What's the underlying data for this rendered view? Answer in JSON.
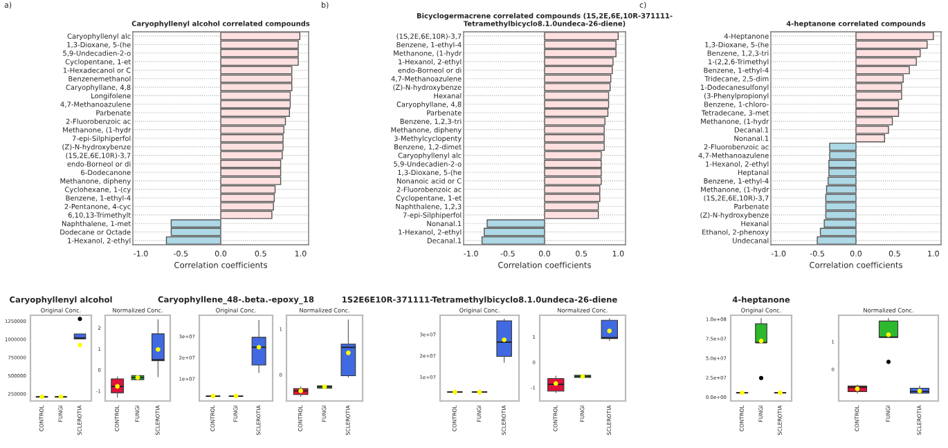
{
  "chart_data": [
    {
      "type": "bar",
      "orientation": "horizontal",
      "title": "Caryophyllenyl alcohol correlated compounds",
      "xlabel": "Correlation coefficients",
      "annotations": [
        "a)"
      ],
      "grid": "y",
      "xlim": [
        -1.1,
        1.1
      ],
      "xticks": [
        {
          "value": -1,
          "label": "-1.0"
        },
        {
          "value": -0.5,
          "label": "-0.5"
        },
        {
          "value": 0,
          "label": "0.0"
        },
        {
          "value": 0.5,
          "label": "0.5"
        },
        {
          "value": 1,
          "label": "1.0"
        }
      ],
      "categories": [
        "Caryophyllenyl alc",
        "1,3-Dioxane, 5-(he",
        "5,9-Undecadien-2-o",
        "Cyclopentane, 1-et",
        "1-Hexadecanol or C",
        "Benzenemethanol",
        "Caryophyllane, 4,8",
        "Longifolene",
        "4,7-Methanoazulene",
        "Parbenate",
        "2-Fluorobenzoic ac",
        "Methanone, (1-hydr",
        "7-epi-Silphiperfol",
        "(Z)-N-hydroxybenze",
        "(1S,2E,6E,10R)-3,7",
        "endo-Borneol or di",
        "6-Dodecanone",
        "Methanone, dipheny",
        "Cyclohexane, 1-(cy",
        "Benzene, 1-ethyl-4",
        "2-Pentanone, 4-cyc",
        "6,10,13-Trimethylt",
        "Naphthalene, 1-met",
        "Dodecane or Octade",
        "1-Hexanol, 2-ethyl"
      ],
      "values": [
        0.99,
        0.97,
        0.97,
        0.97,
        0.89,
        0.89,
        0.89,
        0.87,
        0.87,
        0.86,
        0.81,
        0.79,
        0.78,
        0.78,
        0.77,
        0.75,
        0.75,
        0.75,
        0.68,
        0.67,
        0.66,
        0.64,
        -0.62,
        -0.62,
        -0.68
      ],
      "colors": [
        "#ffe0e0",
        "#ffe0e0",
        "#ffe0e0",
        "#ffe0e0",
        "#ffe0e0",
        "#ffe0e0",
        "#ffe0e0",
        "#ffe0e0",
        "#ffe0e0",
        "#ffe0e0",
        "#ffe0e0",
        "#ffe0e0",
        "#ffe0e0",
        "#ffe0e0",
        "#ffe0e0",
        "#ffe0e0",
        "#ffe0e0",
        "#ffe0e0",
        "#ffe0e0",
        "#ffe0e0",
        "#ffe0e0",
        "#ffe0e0",
        "#add8e6",
        "#add8e6",
        "#add8e6"
      ]
    },
    {
      "type": "bar",
      "orientation": "horizontal",
      "title": "Bicyclogermacrene correlated compounds (1S,2E,6E,10R-371111-\nTetramethylbicyclo8.1.0undeca-26-diene)",
      "xlabel": "Correlation coefficients",
      "annotations": [
        "b)"
      ],
      "grid": "y",
      "xlim": [
        -1.1,
        1.1
      ],
      "xticks": [
        {
          "value": -1,
          "label": "-1.0"
        },
        {
          "value": -0.5,
          "label": "-0.5"
        },
        {
          "value": 0,
          "label": "0.0"
        },
        {
          "value": 0.5,
          "label": "0.5"
        },
        {
          "value": 1,
          "label": "1.0"
        }
      ],
      "categories": [
        "(1S,2E,6E,10R)-3,7",
        "Benzene, 1-ethyl-4",
        "Methanone, (1-hydr",
        "1-Hexanol, 2-ethyl",
        "endo-Borneol or di",
        "4,7-Methanoazulene",
        "(Z)-N-hydroxybenze",
        "Hexanal",
        "Caryophyllane, 4,8",
        "Parbenate",
        "Benzene, 1,2,3-tri",
        "Methanone, dipheny",
        "3-Methylcyclopenty",
        "Benzene, 1,2-dimet",
        "Caryophyllenyl alc",
        "5,9-Undecadien-2-o",
        "1,3-Dioxane, 5-(he",
        "Nonanoic acid or C",
        "2-Fluorobenzoic ac",
        "Cyclopentane, 1-et",
        "Naphthalene, 1,2,3",
        "7-epi-Silphiperfol",
        "Nonanal.1",
        "1-Hexanol, 2-ethyl",
        "Decanal.1"
      ],
      "values": [
        1.0,
        0.97,
        0.97,
        0.93,
        0.92,
        0.9,
        0.89,
        0.87,
        0.87,
        0.86,
        0.82,
        0.81,
        0.81,
        0.81,
        0.77,
        0.77,
        0.77,
        0.77,
        0.75,
        0.75,
        0.73,
        0.73,
        -0.78,
        -0.82,
        -0.85
      ],
      "colors": [
        "#ffe0e0",
        "#ffe0e0",
        "#ffe0e0",
        "#ffe0e0",
        "#ffe0e0",
        "#ffe0e0",
        "#ffe0e0",
        "#ffe0e0",
        "#ffe0e0",
        "#ffe0e0",
        "#ffe0e0",
        "#ffe0e0",
        "#ffe0e0",
        "#ffe0e0",
        "#ffe0e0",
        "#ffe0e0",
        "#ffe0e0",
        "#ffe0e0",
        "#ffe0e0",
        "#ffe0e0",
        "#ffe0e0",
        "#ffe0e0",
        "#add8e6",
        "#add8e6",
        "#add8e6"
      ]
    },
    {
      "type": "bar",
      "orientation": "horizontal",
      "title": "4-heptanone correlated compounds",
      "xlabel": "Correlation coefficients",
      "annotations": [
        "c)"
      ],
      "grid": "y",
      "xlim": [
        -1.1,
        1.1
      ],
      "xticks": [
        {
          "value": -1,
          "label": "-1.0"
        },
        {
          "value": -0.5,
          "label": "-0.5"
        },
        {
          "value": 0,
          "label": "0.0"
        },
        {
          "value": 0.5,
          "label": "0.5"
        },
        {
          "value": 1,
          "label": "1.0"
        }
      ],
      "categories": [
        "4-Heptanone",
        "1,3-Dioxane, 5-(he",
        "Benzene, 1,2,3-tri",
        "1-(2,2,6-Trimethyl",
        "Benzene, 1-ethyl-4",
        "Tridecane, 2,5-dim",
        "1-Dodecanesulfonyl",
        "(3-Phenylpropionyl",
        "Benzene, 1-chloro-",
        "Tetradecane, 3-met",
        "Methanone, (1-hydr",
        "Decanal.1",
        "Nonanal.1",
        "2-Fluorobenzoic ac",
        "4,7-Methanoazulene",
        "1-Hexanol, 2-ethyl",
        "Heptanal",
        "Benzene, 1-ethyl-4",
        "Methanone, (1-hydr",
        "(1S,2E,6E,10R)-3,7",
        "Parbenate",
        "(Z)-N-hydroxybenze",
        "Hexanal",
        "Ethanol, 2-phenoxy",
        "Undecanal"
      ],
      "values": [
        1.0,
        0.92,
        0.83,
        0.78,
        0.69,
        0.61,
        0.59,
        0.59,
        0.55,
        0.55,
        0.47,
        0.42,
        0.37,
        -0.34,
        -0.34,
        -0.35,
        -0.35,
        -0.36,
        -0.38,
        -0.39,
        -0.39,
        -0.39,
        -0.41,
        -0.46,
        -0.5
      ],
      "colors": [
        "#ffe0e0",
        "#ffe0e0",
        "#ffe0e0",
        "#ffe0e0",
        "#ffe0e0",
        "#ffe0e0",
        "#ffe0e0",
        "#ffe0e0",
        "#ffe0e0",
        "#ffe0e0",
        "#ffe0e0",
        "#ffe0e0",
        "#ffe0e0",
        "#add8e6",
        "#add8e6",
        "#add8e6",
        "#add8e6",
        "#add8e6",
        "#add8e6",
        "#add8e6",
        "#add8e6",
        "#add8e6",
        "#add8e6",
        "#add8e6",
        "#add8e6"
      ]
    },
    {
      "type": "box",
      "title": "Caryophyllenyl alcohol",
      "subtitle": "Original Conc.",
      "categories": [
        "CONTROL",
        "FUNGI",
        "SCLEROTIA"
      ],
      "colors": [
        "#dc143c",
        "#2eb82e",
        "#4169e1"
      ],
      "ylim": [
        152000,
        1330000
      ],
      "yticks": [
        250000,
        500000,
        750000,
        1000000,
        1250000
      ],
      "boxes": [
        {
          "low": 200000,
          "q1": 205000,
          "median": 210000,
          "q3": 212000,
          "high": 215000,
          "mean": 210000
        },
        {
          "low": 200000,
          "q1": 205000,
          "median": 210000,
          "q3": 212000,
          "high": 215000,
          "mean": 210000
        },
        {
          "low": 1006000,
          "q1": 1006000,
          "median": 1018000,
          "q3": 1073000,
          "high": 1073000,
          "mean": 920000,
          "outliers": [
            1280000
          ]
        }
      ]
    },
    {
      "type": "box",
      "subtitle": "Normalized Conc.",
      "categories": [
        "CONTROL",
        "FUNGI",
        "SCLEROTIA"
      ],
      "colors": [
        "#dc143c",
        "#2eb82e",
        "#4169e1"
      ],
      "ylim": [
        -1.47,
        2.59
      ],
      "yticks": [
        -1,
        0,
        1,
        2
      ],
      "boxes": [
        {
          "low": -1.3,
          "q1": -1.08,
          "median": -0.78,
          "q3": -0.42,
          "high": -0.32,
          "mean": -0.78
        },
        {
          "low": -0.46,
          "q1": -0.46,
          "median": -0.36,
          "q3": -0.27,
          "high": -0.27,
          "mean": -0.36
        },
        {
          "low": -0.32,
          "q1": 0.44,
          "median": 0.48,
          "q3": 1.71,
          "high": 2.38,
          "mean": 0.97
        }
      ]
    },
    {
      "type": "box",
      "title": "Caryophyllene_48-.beta.-epoxy_18",
      "subtitle": "Original Conc.",
      "categories": [
        "CONTROL",
        "FUNGI",
        "SCLEROTIA"
      ],
      "colors": [
        "#dc143c",
        "#2eb82e",
        "#4169e1"
      ],
      "ylim": [
        -500000,
        40000000
      ],
      "yticks": [
        {
          "value": 10000000,
          "label": "1e+07"
        },
        {
          "value": 20000000,
          "label": "2e+07"
        },
        {
          "value": 30000000,
          "label": "3e+07"
        }
      ],
      "boxes": [
        {
          "low": 1600000,
          "q1": 1700000,
          "median": 1800000,
          "q3": 1900000,
          "high": 2000000,
          "mean": 1800000
        },
        {
          "low": 1600000,
          "q1": 1700000,
          "median": 1800000,
          "q3": 1900000,
          "high": 2000000,
          "mean": 1800000
        },
        {
          "low": 12900000,
          "q1": 16500000,
          "median": 24900000,
          "q3": 29600000,
          "high": 37600000,
          "mean": 24900000
        }
      ]
    },
    {
      "type": "box",
      "subtitle": "Normalized Conc.",
      "categories": [
        "CONTROL",
        "FUNGI",
        "SCLEROTIA"
      ],
      "colors": [
        "#dc143c",
        "#2eb82e",
        "#4169e1"
      ],
      "ylim": [
        -0.57,
        1.3
      ],
      "yticks": [
        0,
        1
      ],
      "boxes": [
        {
          "low": -0.47,
          "q1": -0.43,
          "median": -0.35,
          "q3": -0.3,
          "high": -0.26,
          "mean": -0.35
        },
        {
          "low": -0.29,
          "q1": -0.29,
          "median": -0.26,
          "q3": -0.24,
          "high": -0.24,
          "mean": -0.26
        },
        {
          "low": -0.05,
          "q1": -0.02,
          "median": 0.6,
          "q3": 0.67,
          "high": 1.2,
          "mean": 0.48
        }
      ]
    },
    {
      "type": "box",
      "title": "1S2E6E10R-371111-Tetramethylbicyclo8.1.0undeca-26-diene",
      "subtitle": "Original Conc.",
      "categories": [
        "CONTROL",
        "FUNGI",
        "SCLEROTIA"
      ],
      "colors": [
        "#dc143c",
        "#2eb82e",
        "#4169e1"
      ],
      "ylim": [
        -1200000,
        39000000
      ],
      "yticks": [
        {
          "value": 10000000,
          "label": "1e+07"
        },
        {
          "value": 20000000,
          "label": "2e+07"
        },
        {
          "value": 30000000,
          "label": "3e+07"
        }
      ],
      "boxes": [
        {
          "low": 2800000,
          "q1": 2900000,
          "median": 3000000,
          "q3": 3100000,
          "high": 3200000,
          "mean": 3000000
        },
        {
          "low": 2800000,
          "q1": 2900000,
          "median": 3000000,
          "q3": 3100000,
          "high": 3200000,
          "mean": 3000000
        },
        {
          "low": 16900000,
          "q1": 19700000,
          "median": 26400000,
          "q3": 36400000,
          "high": 37300000,
          "mean": 27500000
        }
      ]
    },
    {
      "type": "box",
      "subtitle": "Normalized Conc.",
      "categories": [
        "CONTROL",
        "FUNGI",
        "SCLEROTIA"
      ],
      "colors": [
        "#dc143c",
        "#2eb82e",
        "#4169e1"
      ],
      "ylim": [
        -1.53,
        1.86
      ],
      "yticks": [
        -1,
        0,
        1
      ],
      "boxes": [
        {
          "low": -1.2,
          "q1": -1.14,
          "median": -0.87,
          "q3": -0.64,
          "high": -0.54,
          "mean": -0.84
        },
        {
          "low": -0.6,
          "q1": -0.6,
          "median": -0.56,
          "q3": -0.51,
          "high": -0.51,
          "mean": -0.56
        },
        {
          "low": 0.86,
          "q1": 0.94,
          "median": 0.97,
          "q3": 1.66,
          "high": 1.73,
          "mean": 1.24
        }
      ]
    },
    {
      "type": "box",
      "title": "4-heptanone",
      "subtitle": "Original Conc.",
      "categories": [
        "CONTROL",
        "FUNGI",
        "SCLEROTIA"
      ],
      "colors": [
        "#dc143c",
        "#2eb82e",
        "#4169e1"
      ],
      "ylim": [
        -5000000,
        105000000
      ],
      "yticks": [
        {
          "value": 0,
          "label": "0.0e+00"
        },
        {
          "value": 25000000,
          "label": "2.5e+07"
        },
        {
          "value": 50000000,
          "label": "5.0e+07"
        },
        {
          "value": 75000000,
          "label": "7.5e+07"
        },
        {
          "value": 100000000,
          "label": "1.0e+08"
        }
      ],
      "boxes": [
        {
          "low": 5000000,
          "q1": 5300000,
          "median": 5500000,
          "q3": 5700000,
          "high": 6000000,
          "mean": 5500000
        },
        {
          "low": 69900000,
          "q1": 69900000,
          "median": 69900000,
          "q3": 94000000,
          "high": 101000000,
          "mean": 72000000,
          "outliers": [
            24500000
          ]
        },
        {
          "low": 5000000,
          "q1": 5300000,
          "median": 5500000,
          "q3": 5700000,
          "high": 6000000,
          "mean": 5500000
        }
      ]
    },
    {
      "type": "box",
      "subtitle": "Normalized Conc.",
      "categories": [
        "CONTROL",
        "FUNGI",
        "SCLEROTIA"
      ],
      "colors": [
        "#dc143c",
        "#2eb82e",
        "#4169e1"
      ],
      "ylim": [
        -1.14,
        1.95
      ],
      "yticks": [
        0,
        1
      ],
      "boxes": [
        {
          "low": -0.86,
          "q1": -0.8,
          "median": -0.65,
          "q3": -0.6,
          "high": -0.56,
          "mean": -0.7
        },
        {
          "low": 1.16,
          "q1": 1.16,
          "median": 1.16,
          "q3": 1.74,
          "high": 1.84,
          "mean": 1.25,
          "outliers": [
            0.27
          ]
        },
        {
          "low": -0.88,
          "q1": -0.86,
          "median": -0.8,
          "q3": -0.68,
          "high": -0.6,
          "mean": -0.78
        }
      ]
    }
  ]
}
